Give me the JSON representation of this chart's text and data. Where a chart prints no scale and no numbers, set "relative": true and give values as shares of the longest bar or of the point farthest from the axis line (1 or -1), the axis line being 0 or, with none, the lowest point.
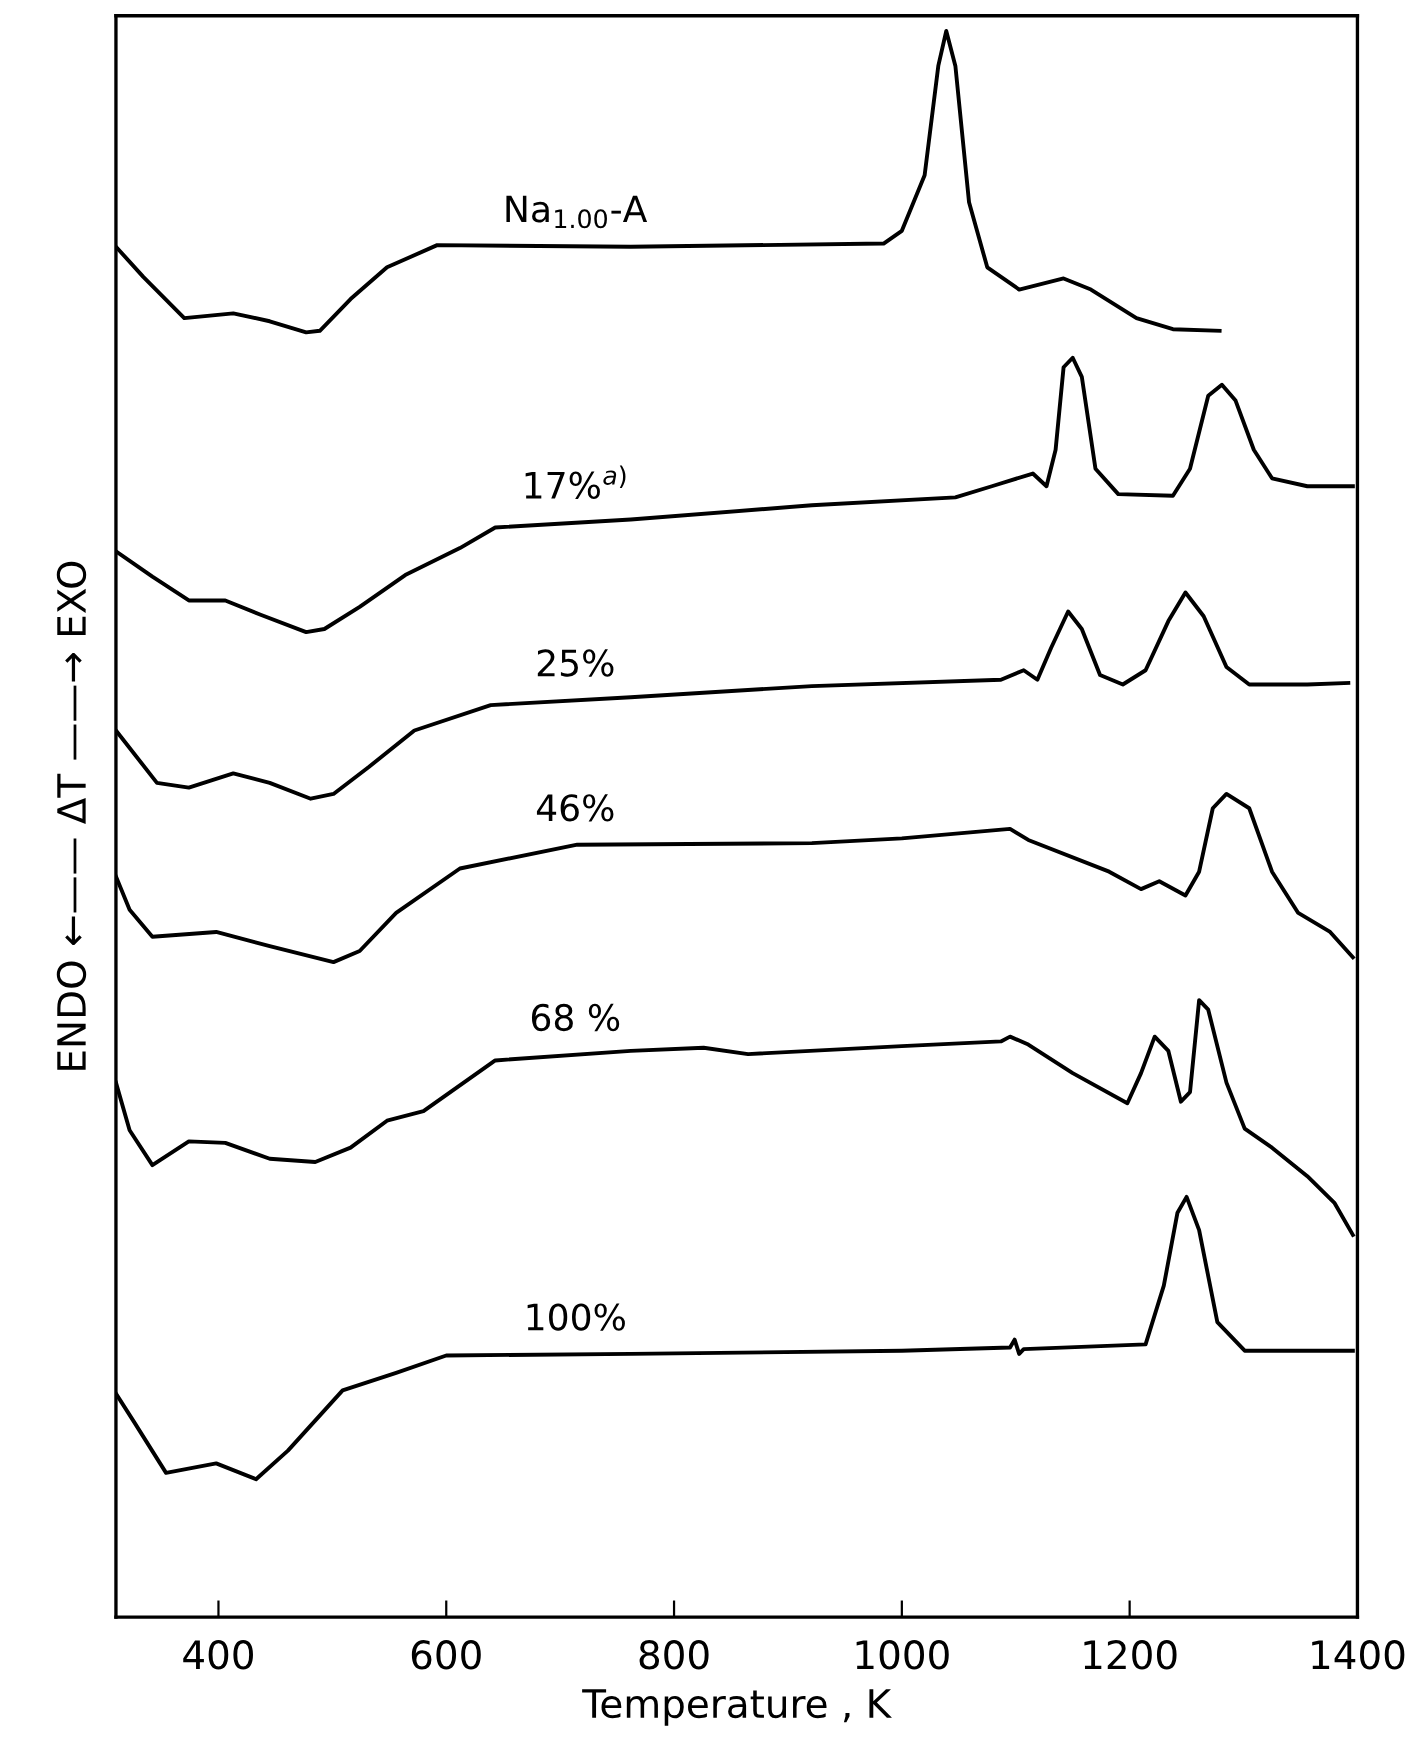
{
  "chart_data": {
    "type": "line",
    "relative": true,
    "xlabel": "Temperature , K",
    "ylabel": "ENDO ←—— ΔT ——→ EXO",
    "xlim": [
      310,
      1400
    ],
    "xticks": [
      400,
      600,
      800,
      1000,
      1200,
      1400
    ],
    "grid": false,
    "legend": false,
    "marker": "none",
    "line_style": "solid",
    "series": [
      {
        "name": "Na$_{1.00}$-A",
        "color": "#000000",
        "x": [
          310,
          334,
          370,
          413,
          445,
          477,
          489,
          516,
          548,
          592,
          762,
          984,
          1000,
          1020,
          1032,
          1039,
          1047,
          1059,
          1075,
          1103,
          1142,
          1166,
          1206,
          1238,
          1279
        ],
        "values": [
          0.864,
          0.845,
          0.819,
          0.822,
          0.817,
          0.81,
          0.811,
          0.831,
          0.851,
          0.865,
          0.864,
          0.866,
          0.874,
          0.909,
          0.978,
          1.0,
          0.978,
          0.892,
          0.851,
          0.837,
          0.844,
          0.837,
          0.819,
          0.812,
          0.811
        ]
      },
      {
        "name": "17%$^{a)}$",
        "color": "#000000",
        "x": [
          310,
          342,
          374,
          406,
          437,
          477,
          493,
          524,
          564,
          612,
          643,
          762,
          921,
          1047,
          1079,
          1115,
          1127,
          1135,
          1142,
          1150,
          1158,
          1170,
          1190,
          1238,
          1253,
          1269,
          1281,
          1293,
          1309,
          1325,
          1356,
          1396
        ],
        "values": [
          0.672,
          0.656,
          0.641,
          0.641,
          0.632,
          0.621,
          0.623,
          0.637,
          0.657,
          0.674,
          0.687,
          0.692,
          0.701,
          0.706,
          0.713,
          0.721,
          0.713,
          0.736,
          0.788,
          0.794,
          0.782,
          0.724,
          0.708,
          0.707,
          0.724,
          0.77,
          0.777,
          0.767,
          0.736,
          0.718,
          0.713,
          0.713
        ]
      },
      {
        "name": "25%",
        "color": "#000000",
        "x": [
          310,
          346,
          374,
          413,
          445,
          481,
          501,
          532,
          572,
          639,
          762,
          921,
          1087,
          1107,
          1119,
          1131,
          1146,
          1158,
          1174,
          1194,
          1214,
          1234,
          1249,
          1265,
          1285,
          1305,
          1356,
          1392
        ],
        "values": [
          0.559,
          0.526,
          0.523,
          0.532,
          0.526,
          0.516,
          0.519,
          0.536,
          0.559,
          0.575,
          0.58,
          0.587,
          0.591,
          0.597,
          0.591,
          0.611,
          0.634,
          0.623,
          0.594,
          0.588,
          0.597,
          0.628,
          0.646,
          0.631,
          0.599,
          0.588,
          0.588,
          0.589
        ]
      },
      {
        "name": "46%",
        "color": "#000000",
        "x": [
          310,
          322,
          342,
          398,
          445,
          501,
          524,
          556,
          612,
          715,
          921,
          1000,
          1095,
          1111,
          1182,
          1210,
          1226,
          1249,
          1261,
          1273,
          1285,
          1305,
          1325,
          1348,
          1376,
          1396
        ],
        "values": [
          0.467,
          0.446,
          0.429,
          0.432,
          0.423,
          0.413,
          0.42,
          0.444,
          0.472,
          0.487,
          0.488,
          0.491,
          0.497,
          0.49,
          0.47,
          0.459,
          0.464,
          0.455,
          0.47,
          0.51,
          0.519,
          0.51,
          0.47,
          0.444,
          0.432,
          0.416
        ]
      },
      {
        "name": "68 %",
        "color": "#000000",
        "x": [
          310,
          322,
          342,
          374,
          406,
          445,
          485,
          516,
          548,
          580,
          643,
          762,
          826,
          865,
          1000,
          1087,
          1095,
          1111,
          1150,
          1198,
          1210,
          1222,
          1234,
          1245,
          1253,
          1261,
          1269,
          1285,
          1301,
          1325,
          1356,
          1380,
          1396
        ],
        "values": [
          0.337,
          0.307,
          0.285,
          0.3,
          0.299,
          0.289,
          0.287,
          0.296,
          0.313,
          0.319,
          0.351,
          0.357,
          0.359,
          0.355,
          0.36,
          0.363,
          0.366,
          0.361,
          0.343,
          0.324,
          0.343,
          0.366,
          0.357,
          0.325,
          0.331,
          0.389,
          0.383,
          0.337,
          0.308,
          0.296,
          0.278,
          0.261,
          0.241
        ]
      },
      {
        "name": "100%",
        "color": "#000000",
        "x": [
          310,
          326,
          354,
          398,
          433,
          461,
          509,
          556,
          600,
          762,
          1000,
          1095,
          1099,
          1103,
          1107,
          1214,
          1230,
          1242,
          1250,
          1261,
          1277,
          1301,
          1396
        ],
        "values": [
          0.141,
          0.123,
          0.091,
          0.097,
          0.087,
          0.105,
          0.143,
          0.154,
          0.165,
          0.166,
          0.168,
          0.17,
          0.175,
          0.166,
          0.169,
          0.172,
          0.209,
          0.255,
          0.265,
          0.244,
          0.186,
          0.168,
          0.168
        ]
      }
    ]
  }
}
